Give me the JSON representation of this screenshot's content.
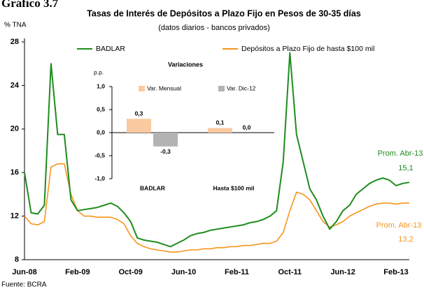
{
  "chart_data": [
    {
      "type": "line",
      "figure_label": "Gráfico 3.7",
      "title": "Tasas de Interés de Depósitos a Plazo Fijo en Pesos de 30-35 días",
      "subtitle": "(datos diarios - bancos privados)",
      "y_label": "% TNA",
      "source": "Fuente: BCRA",
      "categories": [
        "Jun-08",
        null,
        null,
        null,
        null,
        null,
        null,
        null,
        "Feb-09",
        null,
        null,
        null,
        null,
        null,
        null,
        null,
        "Oct-09",
        null,
        null,
        null,
        null,
        null,
        null,
        null,
        "Jun-10",
        null,
        null,
        null,
        null,
        null,
        null,
        null,
        "Feb-11",
        null,
        null,
        null,
        null,
        null,
        null,
        null,
        "Oct-11",
        null,
        null,
        null,
        null,
        null,
        null,
        null,
        "Jun-12",
        null,
        null,
        null,
        null,
        null,
        null,
        null,
        "Feb-13",
        null,
        null
      ],
      "series": [
        {
          "name": "BADLAR",
          "color": "#1e8c1e",
          "values": [
            16,
            12.3,
            12.2,
            13,
            26,
            19.5,
            19.5,
            13.5,
            12.5,
            12.6,
            12.7,
            12.8,
            13,
            13.2,
            12.9,
            12.3,
            11.5,
            10,
            9.8,
            9.7,
            9.6,
            9.4,
            9.2,
            9.5,
            9.8,
            10.2,
            10.4,
            10.5,
            10.7,
            10.8,
            10.9,
            11,
            11.1,
            11.2,
            11.4,
            11.5,
            11.7,
            12,
            12.5,
            17,
            27,
            19.5,
            17,
            14.5,
            13.5,
            12,
            10.8,
            11.5,
            12.5,
            13,
            14,
            14.5,
            15,
            15.3,
            15.5,
            15.3,
            14.8,
            15,
            15.1
          ]
        },
        {
          "name": "Depósitos a Plazo Fijo de hasta $100 mil",
          "color": "#f7941d",
          "values": [
            12,
            11.3,
            11.2,
            11.5,
            16.5,
            16.8,
            16.8,
            14,
            12.5,
            12,
            12,
            11.9,
            11.9,
            11.9,
            11.7,
            11.3,
            10.2,
            9.5,
            9.2,
            9,
            8.9,
            8.8,
            8.7,
            8.7,
            8.8,
            8.9,
            8.9,
            9,
            9,
            9.1,
            9.1,
            9.2,
            9.2,
            9.3,
            9.3,
            9.4,
            9.5,
            9.5,
            9.7,
            10.5,
            12.5,
            14.2,
            14,
            13.5,
            12.5,
            11.5,
            11,
            11.2,
            11.5,
            12,
            12.3,
            12.6,
            12.9,
            13.1,
            13.2,
            13.2,
            13.1,
            13.2,
            13.2
          ]
        }
      ],
      "ylim": [
        8,
        28
      ],
      "yticks": [
        8,
        12,
        16,
        20,
        24,
        28
      ],
      "annotations": [
        {
          "text": "Prom. Abr-13",
          "color": "#1e8c1e"
        },
        {
          "text": "15,1",
          "color": "#1e8c1e"
        },
        {
          "text": "Prom. Abr-13",
          "color": "#f7941d"
        },
        {
          "text": "13,2",
          "color": "#f7941d"
        }
      ]
    },
    {
      "type": "bar",
      "title": "Variaciones",
      "y_label": "p.p.",
      "categories": [
        "BADLAR",
        "Hasta $100 mil"
      ],
      "series": [
        {
          "name": "Var. Mensual",
          "color": "#f9c9a0",
          "values": [
            0.3,
            0.1
          ],
          "value_labels": [
            "0,3",
            "0,1"
          ]
        },
        {
          "name": "Var. Dic-12",
          "color": "#b3b3b3",
          "values": [
            -0.3,
            0.0
          ],
          "value_labels": [
            "-0,3",
            "0,0"
          ]
        }
      ],
      "ylim": [
        -1,
        1
      ],
      "yticks": [
        {
          "value": -1,
          "label": "-1,0"
        },
        {
          "value": -0.5,
          "label": "-0,5"
        },
        {
          "value": 0,
          "label": "0,0"
        },
        {
          "value": 0.5,
          "label": "0,5"
        },
        {
          "value": 1,
          "label": "1,0"
        }
      ]
    }
  ]
}
